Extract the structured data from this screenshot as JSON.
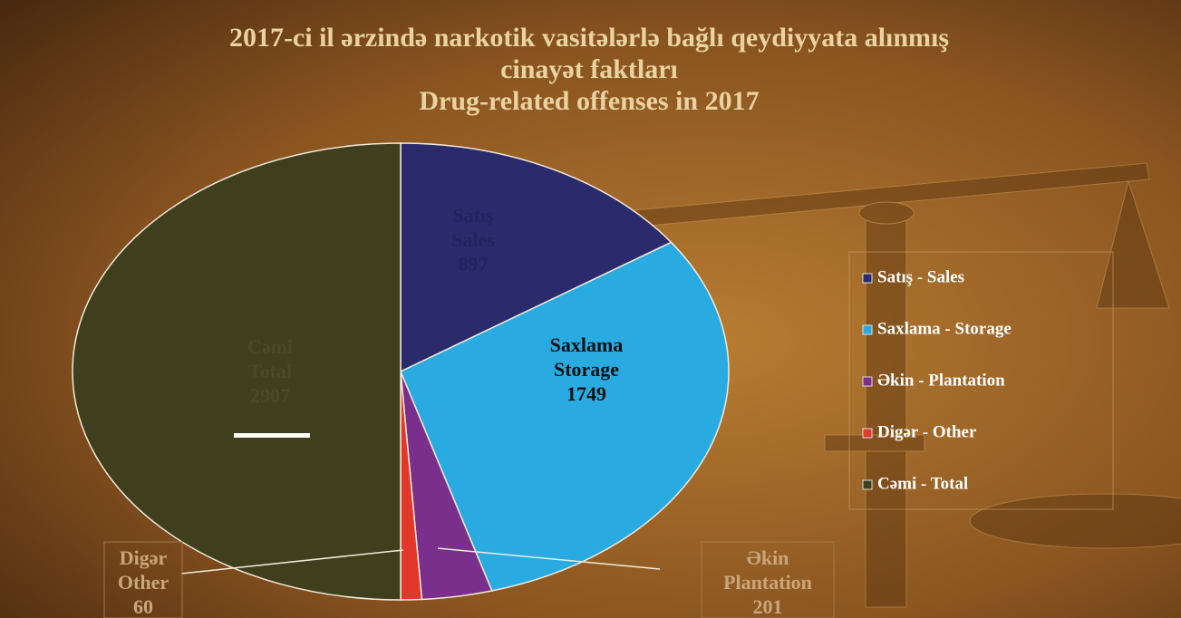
{
  "chart_data": {
    "type": "pie",
    "title": [
      "2017-ci il ərzində narkotik vasitələrlə bağlı qeydiyyata alınmış",
      "cinayət faktları",
      "Drug-related offenses in 2017"
    ],
    "categories": [
      "Satış - Sales",
      "Saxlama - Storage",
      "Əkin - Plantation",
      "Digər - Other",
      "Cəmi - Total"
    ],
    "values": [
      897,
      1749,
      201,
      60,
      2907
    ],
    "colors": [
      "#2b2a6c",
      "#29abe2",
      "#7a2f8c",
      "#e0392b",
      "#3f3f1e"
    ],
    "slice_labels": [
      [
        "Satış",
        "Sales"
      ],
      [
        "Saxlama",
        "Storage"
      ],
      [
        "Əkin",
        "Plantation"
      ],
      [
        "Digər",
        "Other"
      ],
      [
        "Cəmi",
        "Total"
      ]
    ],
    "legend": "right"
  }
}
